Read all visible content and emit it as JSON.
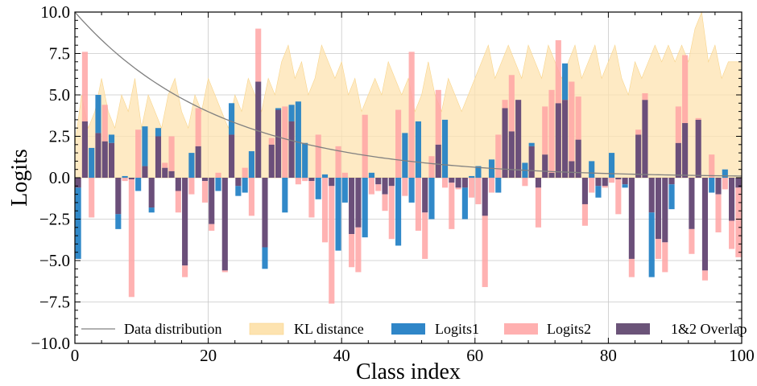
{
  "chart_data": {
    "type": "bar",
    "xlabel": "Class index",
    "ylabel": "Logits",
    "xlim": [
      0,
      100
    ],
    "ylim": [
      -10,
      10
    ],
    "xticks": [
      0,
      20,
      40,
      60,
      80,
      100
    ],
    "xtick_labels": [
      "0",
      "20",
      "40",
      "60",
      "80",
      "100"
    ],
    "yticks": [
      -10,
      -7.5,
      -5,
      -2.5,
      0,
      2.5,
      5,
      7.5,
      10
    ],
    "ytick_labels": [
      "−10.0",
      "−7.5",
      "−5.0",
      "−2.5",
      "0.0",
      "2.5",
      "5.0",
      "7.5",
      "10.0"
    ],
    "grid": true,
    "legend_position": "bottom",
    "colors": {
      "data_distribution": "#808080",
      "kl_distance": "#fde3b0",
      "logits1": "#1f7fc4",
      "logits2": "#ffa5a5",
      "overlap": "#6b4f7a"
    },
    "legend": [
      {
        "name": "Data distribution",
        "kind": "line",
        "color": "#808080"
      },
      {
        "name": "KL distance",
        "kind": "area",
        "color": "#fde3b0"
      },
      {
        "name": "Logits1",
        "kind": "bar",
        "color": "#2f86c8"
      },
      {
        "name": "Logits2",
        "kind": "bar",
        "color": "#ffb0b0"
      },
      {
        "name": "1&2 Overlap",
        "kind": "bar",
        "color": "#6b5479"
      }
    ],
    "data_distribution": {
      "type": "line",
      "start": 10,
      "decay_per_class": 0.046
    },
    "kl_distance": [
      2,
      5,
      3,
      4,
      6,
      4,
      3,
      5,
      4,
      6,
      3,
      5,
      4,
      3,
      5,
      6,
      4,
      3,
      5,
      4,
      6,
      5,
      4,
      3,
      5,
      4,
      6,
      5,
      4,
      6,
      5,
      7,
      8,
      6,
      7,
      5,
      6,
      8,
      7,
      6,
      7,
      5,
      6,
      4,
      5,
      6,
      5,
      7,
      6,
      5,
      6,
      4,
      5,
      7,
      5,
      4,
      6,
      5,
      4,
      5,
      6,
      7,
      8,
      6,
      7,
      8,
      7,
      6,
      8,
      7,
      6,
      8,
      7,
      6,
      7,
      8,
      6,
      7,
      8,
      6,
      7,
      8,
      6,
      5,
      7,
      6,
      7,
      8,
      7,
      8,
      7,
      8,
      7,
      9,
      10,
      7,
      8,
      6,
      7,
      7,
      7
    ],
    "logits1": [
      -4.9,
      3.4,
      1.8,
      5.0,
      2.2,
      2.6,
      -3.1,
      0.1,
      -0.1,
      -0.8,
      3.1,
      -2.1,
      3.0,
      0.6,
      0.4,
      -0.8,
      -5.3,
      1.5,
      1.9,
      -0.2,
      -2.8,
      -0.8,
      -5.6,
      4.5,
      -1.1,
      -0.9,
      1.6,
      5.8,
      -5.5,
      2.0,
      4.2,
      -2.1,
      4.4,
      4.6,
      2.1,
      -0.2,
      -1.3,
      0.2,
      -0.5,
      -4.4,
      -1.5,
      -3.4,
      -3.0,
      -3.6,
      0.3,
      -0.4,
      -1.0,
      -0.5,
      -4.1,
      2.7,
      -1.5,
      3.4,
      -2.1,
      -2.5,
      2.0,
      3.5,
      -0.3,
      -0.6,
      -2.5,
      0.1,
      0.7,
      -2.3,
      1.1,
      -0.9,
      4.2,
      2.8,
      4.7,
      0.9,
      2.1,
      -0.6,
      1.4,
      0.3,
      4.5,
      6.9,
      1.0,
      2.3,
      -1.6,
      1.0,
      -1.2,
      -0.5,
      1.5,
      -0.1,
      -0.6,
      -4.9,
      2.6,
      4.7,
      -6.0,
      -3.7,
      -3.9,
      -1.9,
      2.1,
      3.3,
      -3.1,
      3.5,
      -5.6,
      -0.9,
      -1.0,
      0.5,
      -2.6,
      -0.6
    ],
    "logits2": [
      -0.6,
      7.6,
      -2.4,
      2.7,
      4.4,
      2.1,
      -2.2,
      -0.2,
      -7.2,
      2.9,
      0.7,
      -1.8,
      2.5,
      0.9,
      2.5,
      -2.1,
      -6.0,
      -1.0,
      4.2,
      -1.5,
      -3.2,
      0.3,
      -5.7,
      2.6,
      -0.5,
      0.6,
      -2.3,
      9.0,
      -4.2,
      2.4,
      4.1,
      4.3,
      3.4,
      -0.4,
      -0.2,
      -2.4,
      2.6,
      -3.9,
      -7.6,
      1.9,
      0.3,
      -5.4,
      -5.7,
      3.8,
      -1.0,
      -0.8,
      -2.0,
      -3.7,
      4.1,
      -1.1,
      7.6,
      -3.2,
      -4.9,
      1.3,
      5.3,
      -0.6,
      -3.1,
      -0.7,
      -0.6,
      -1.2,
      -1.6,
      -6.6,
      -0.9,
      2.6,
      4.7,
      6.2,
      4.7,
      -0.5,
      1.9,
      -3.0,
      4.3,
      5.3,
      8.3,
      4.7,
      5.8,
      4.9,
      -2.9,
      -0.9,
      -0.5,
      -0.6,
      -0.3,
      -2.2,
      -0.4,
      -6.0,
      2.9,
      5.1,
      -2.1,
      -4.9,
      -5.7,
      -0.4,
      4.3,
      7.4,
      -4.6,
      3.6,
      -6.2,
      1.4,
      -3.3,
      -0.7,
      -4.3,
      -4.8
    ]
  }
}
